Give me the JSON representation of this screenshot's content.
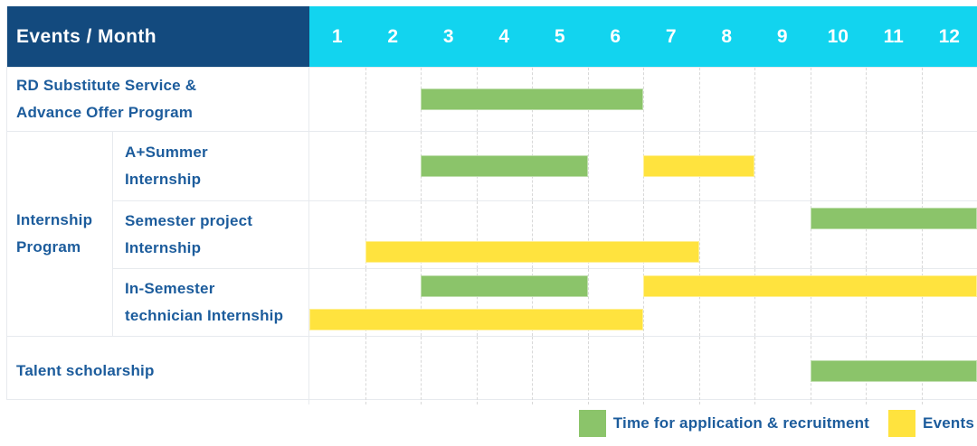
{
  "header": {
    "title": "Events / Month"
  },
  "colors": {
    "header_bg": "#134A7E",
    "month_header_bg": "#12D4EF",
    "label_text": "#1C5C9C",
    "application_bar": "#8BC46A",
    "event_bar": "#FFE33E",
    "grid_line": "#e7eaee",
    "month_divider": "#d8d8d8"
  },
  "chart_data": {
    "type": "gantt",
    "unit": "month",
    "axis": {
      "min": 1,
      "max": 12
    },
    "month_labels": [
      "1",
      "2",
      "3",
      "4",
      "5",
      "6",
      "7",
      "8",
      "9",
      "10",
      "11",
      "12"
    ],
    "group_label": "Internship\nProgram",
    "rows": [
      {
        "label": "RD Substitute Service &\nAdvance Offer Program",
        "group": null,
        "lines": [
          [
            {
              "kind": "application",
              "start": 3,
              "end": 6
            }
          ]
        ]
      },
      {
        "label": "A+Summer\nInternship",
        "group": "Internship Program",
        "lines": [
          [
            {
              "kind": "application",
              "start": 3,
              "end": 5
            },
            {
              "kind": "event",
              "start": 7,
              "end": 8
            }
          ]
        ]
      },
      {
        "label": "Semester project\nInternship",
        "group": "Internship Program",
        "lines": [
          [
            {
              "kind": "application",
              "start": 10,
              "end": 12
            }
          ],
          [
            {
              "kind": "event",
              "start": 2,
              "end": 7
            }
          ]
        ]
      },
      {
        "label": "In-Semester\ntechnician Internship",
        "group": "Internship Program",
        "lines": [
          [
            {
              "kind": "application",
              "start": 3,
              "end": 5
            },
            {
              "kind": "event",
              "start": 7,
              "end": 12
            }
          ],
          [
            {
              "kind": "event",
              "start": 1,
              "end": 6
            }
          ]
        ]
      },
      {
        "label": "Talent scholarship",
        "group": null,
        "lines": [
          [
            {
              "kind": "application",
              "start": 10,
              "end": 12
            }
          ]
        ]
      }
    ],
    "legend": [
      {
        "kind": "application",
        "label": "Time for application & recruitment"
      },
      {
        "kind": "event",
        "label": "Events"
      }
    ]
  }
}
